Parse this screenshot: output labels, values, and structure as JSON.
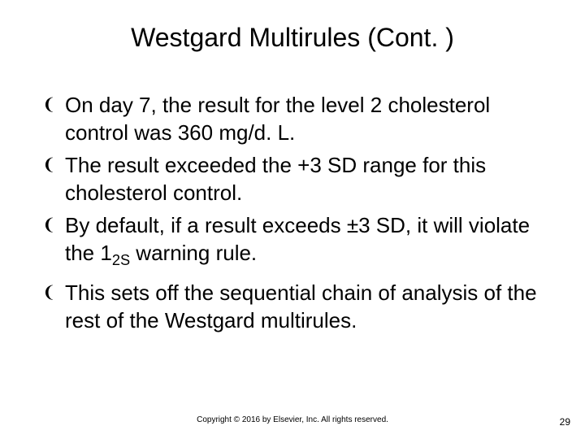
{
  "slide": {
    "title": "Westgard Multirules (Cont. )",
    "bullets": [
      {
        "text": "On day 7, the result for the level 2 cholesterol control was 360 mg/d. L."
      },
      {
        "text": "The result exceeded the +3 SD range for this cholesterol control."
      },
      {
        "text_pre": "By default, if a result exceeds ±3 SD, it will violate the 1",
        "sub": "2S",
        "text_post": " warning rule."
      },
      {
        "text": "This sets off the sequential chain of analysis of the rest of the Westgard multirules."
      }
    ],
    "bullet_marker": "❨",
    "copyright": "Copyright © 2016 by Elsevier, Inc. All rights reserved.",
    "page_number": "29"
  },
  "style": {
    "background_color": "#ffffff",
    "text_color": "#000000",
    "title_fontsize": 32,
    "body_fontsize": 26,
    "copyright_fontsize": 10,
    "pagenum_fontsize": 12,
    "font_family": "Arial"
  }
}
